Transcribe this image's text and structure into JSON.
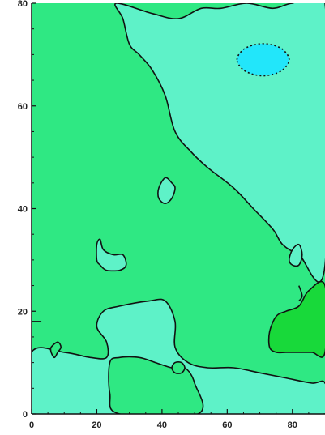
{
  "chart_data": {
    "type": "heatmap",
    "subtype": "filled-contour",
    "title": "",
    "xlabel": "",
    "ylabel": "",
    "xlim": [
      0,
      90
    ],
    "ylim": [
      0,
      80
    ],
    "x_ticks": [
      0,
      20,
      40,
      60,
      80
    ],
    "y_ticks": [
      0,
      20,
      40,
      60,
      80
    ],
    "grid": false,
    "legend": "none",
    "levels": [
      {
        "name": "low",
        "color": "#5ef2c8"
      },
      {
        "name": "mid",
        "color": "#2fe883"
      },
      {
        "name": "high",
        "color": "#18d93a"
      },
      {
        "name": "min",
        "color": "#22e6fa"
      }
    ],
    "regions": [
      {
        "level": "low",
        "outline": [
          [
            26,
            80
          ],
          [
            28,
            77
          ],
          [
            30,
            72
          ],
          [
            33,
            70
          ],
          [
            37,
            67
          ],
          [
            41,
            62
          ],
          [
            44,
            55
          ],
          [
            49,
            51
          ],
          [
            54,
            48
          ],
          [
            62,
            44
          ],
          [
            68,
            40
          ],
          [
            74,
            36
          ],
          [
            77,
            33
          ],
          [
            82,
            31
          ],
          [
            90,
            29
          ],
          [
            90,
            80
          ],
          [
            80,
            80
          ],
          [
            74,
            79
          ],
          [
            66,
            80
          ],
          [
            58,
            79
          ],
          [
            52,
            79
          ],
          [
            45,
            77
          ],
          [
            37,
            78
          ]
        ]
      },
      {
        "level": "low",
        "outline": [
          [
            0,
            12
          ],
          [
            10,
            12
          ],
          [
            18,
            11
          ],
          [
            23,
            11
          ],
          [
            23,
            14
          ],
          [
            20,
            17
          ],
          [
            22,
            20
          ],
          [
            27,
            21
          ],
          [
            36,
            22
          ],
          [
            41,
            22
          ],
          [
            44,
            18
          ],
          [
            44,
            13
          ],
          [
            48,
            10
          ],
          [
            54,
            9
          ],
          [
            62,
            9
          ],
          [
            70,
            8
          ],
          [
            78,
            7
          ],
          [
            86,
            6
          ],
          [
            90,
            6
          ],
          [
            90,
            0
          ],
          [
            0,
            0
          ]
        ]
      },
      {
        "level": "low",
        "outline": [
          [
            21,
            34
          ],
          [
            22,
            32
          ],
          [
            25,
            31
          ],
          [
            28,
            31
          ],
          [
            29,
            29
          ],
          [
            27,
            28
          ],
          [
            23,
            28
          ],
          [
            21,
            29
          ],
          [
            20,
            30
          ],
          [
            20,
            33
          ]
        ]
      },
      {
        "level": "low",
        "outline": [
          [
            39,
            42
          ],
          [
            39,
            44
          ],
          [
            41,
            46
          ],
          [
            43,
            45
          ],
          [
            44,
            44
          ],
          [
            43,
            42
          ],
          [
            41,
            41
          ]
        ]
      },
      {
        "level": "low",
        "outline": [
          [
            79,
            30
          ],
          [
            80,
            32
          ],
          [
            82,
            33
          ],
          [
            83,
            31
          ],
          [
            82,
            29
          ],
          [
            80,
            29
          ]
        ]
      },
      {
        "level": "mid",
        "outline": [
          [
            24,
            10
          ],
          [
            27,
            11
          ],
          [
            33,
            11
          ],
          [
            38,
            10
          ],
          [
            43,
            9
          ],
          [
            47,
            9
          ],
          [
            50,
            6
          ],
          [
            51,
            0
          ],
          [
            27,
            0
          ],
          [
            24,
            4
          ]
        ]
      },
      {
        "level": "mid",
        "outline": [
          [
            6,
            12
          ],
          [
            6,
            13
          ],
          [
            8,
            14
          ],
          [
            9,
            13
          ],
          [
            8,
            12
          ],
          [
            7,
            11
          ]
        ]
      },
      {
        "level": "mid",
        "outline": [
          [
            43,
            9
          ],
          [
            44,
            10
          ],
          [
            46,
            10
          ],
          [
            47,
            9
          ],
          [
            46,
            8
          ],
          [
            44,
            8
          ]
        ]
      },
      {
        "level": "high",
        "outline": [
          [
            73,
            13
          ],
          [
            73,
            16
          ],
          [
            75,
            19
          ],
          [
            78,
            20
          ],
          [
            82,
            21
          ],
          [
            85,
            24
          ],
          [
            90,
            25
          ],
          [
            90,
            12
          ],
          [
            86,
            12
          ],
          [
            82,
            12
          ],
          [
            78,
            12
          ],
          [
            75,
            12
          ]
        ]
      },
      {
        "level": "min",
        "outline": [
          [
            63,
            69
          ],
          [
            65,
            71
          ],
          [
            69,
            72
          ],
          [
            73,
            72
          ],
          [
            77,
            71
          ],
          [
            79,
            69
          ],
          [
            77,
            67
          ],
          [
            73,
            66
          ],
          [
            69,
            66
          ],
          [
            65,
            67
          ]
        ]
      }
    ],
    "open_lines": [
      [
        [
          0,
          18
        ],
        [
          3,
          18
        ]
      ],
      [
        [
          82,
          25
        ],
        [
          83,
          23
        ],
        [
          82,
          22
        ]
      ]
    ]
  }
}
